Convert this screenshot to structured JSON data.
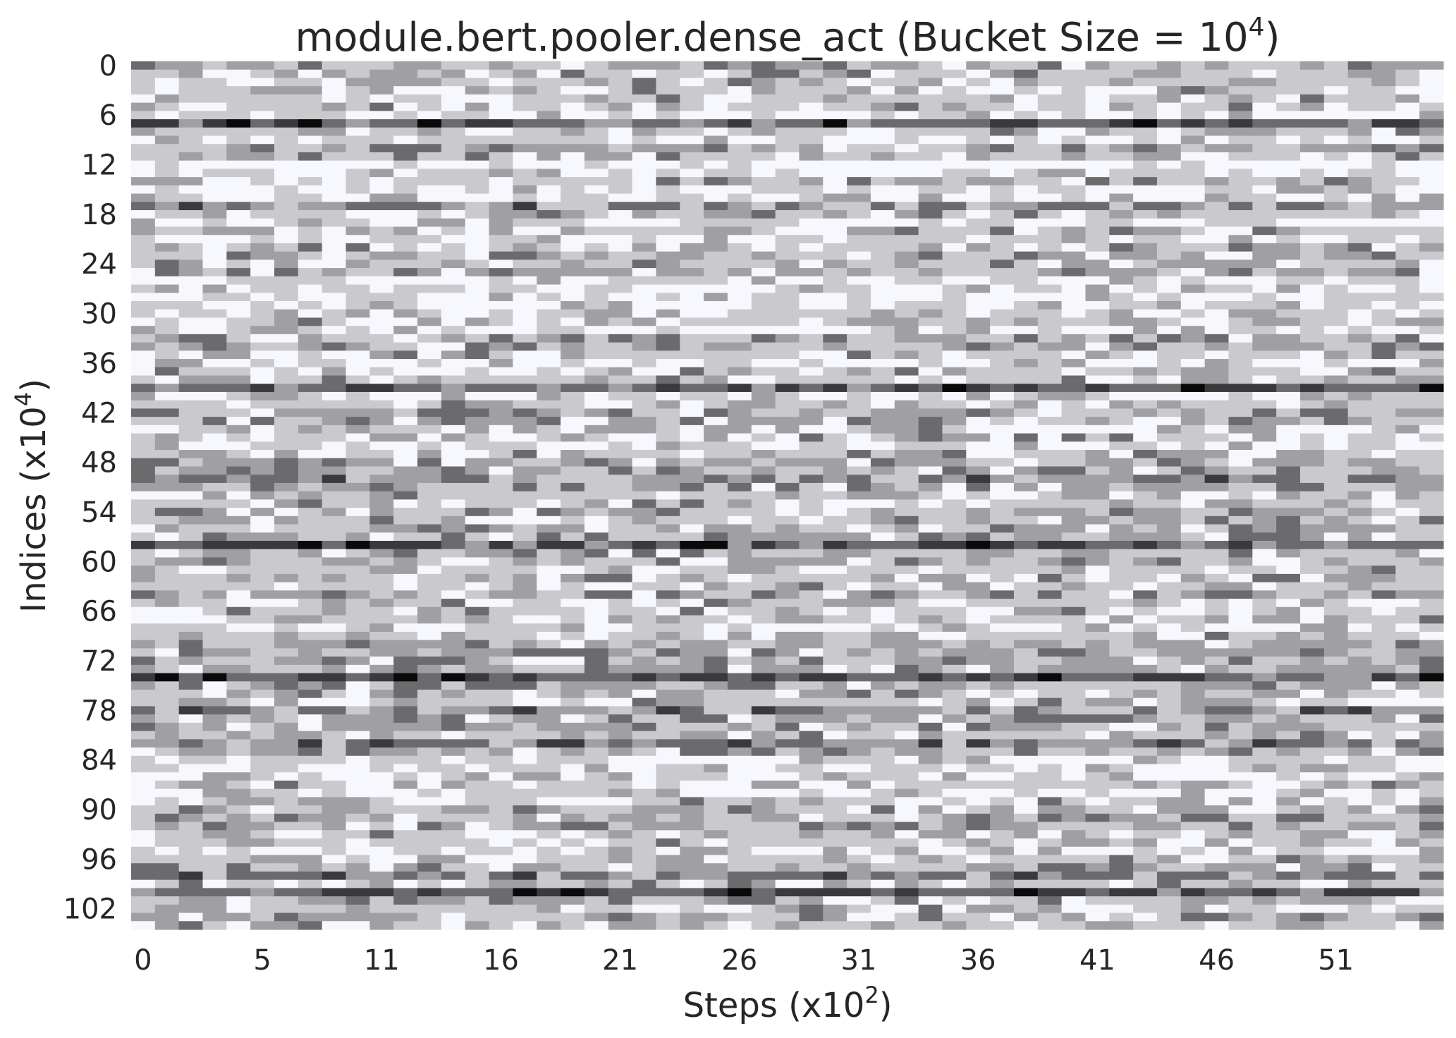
{
  "chart_data": {
    "type": "heatmap",
    "title": "module.bert.pooler.dense_act (Bucket Size = 10",
    "title_superscript": "4",
    "title_suffix": ")",
    "xlabel": "Steps (x10",
    "xlabel_superscript": "2",
    "xlabel_suffix": ")",
    "ylabel": "Indices (x10",
    "ylabel_superscript": "4",
    "ylabel_suffix": ")",
    "x_tick_labels": [
      "0",
      "5",
      "11",
      "16",
      "21",
      "26",
      "31",
      "36",
      "41",
      "46",
      "51"
    ],
    "x_tick_indices": [
      0,
      5,
      10,
      15,
      20,
      25,
      30,
      35,
      40,
      45,
      50
    ],
    "y_tick_labels": [
      "0",
      "6",
      "12",
      "18",
      "24",
      "30",
      "36",
      "42",
      "48",
      "54",
      "60",
      "66",
      "72",
      "78",
      "84",
      "90",
      "96",
      "102"
    ],
    "y_tick_indices": [
      0,
      6,
      12,
      18,
      24,
      30,
      36,
      42,
      48,
      54,
      60,
      66,
      72,
      78,
      84,
      90,
      96,
      102
    ],
    "n_columns": 55,
    "n_rows": 105,
    "colormap": [
      "#f7f8fe",
      "#c9c9ce",
      "#a0a0a4",
      "#6b6b6e",
      "#3a3a3c",
      "#0a0a0a"
    ],
    "row_profiles": [
      [
        0,
        3
      ],
      [
        1,
        2
      ],
      [
        2,
        2
      ],
      [
        3,
        2
      ],
      [
        4,
        2
      ],
      [
        5,
        2
      ],
      [
        6,
        1
      ],
      [
        7,
        5
      ],
      [
        8,
        2
      ],
      [
        9,
        1
      ],
      [
        10,
        3
      ],
      [
        11,
        2
      ],
      [
        12,
        0
      ],
      [
        13,
        1
      ],
      [
        14,
        2
      ],
      [
        15,
        1
      ],
      [
        16,
        1
      ],
      [
        17,
        4
      ],
      [
        18,
        2
      ],
      [
        19,
        1
      ],
      [
        20,
        2
      ],
      [
        21,
        1
      ],
      [
        22,
        2
      ],
      [
        23,
        3
      ],
      [
        24,
        2
      ],
      [
        25,
        3
      ],
      [
        26,
        1
      ],
      [
        27,
        1
      ],
      [
        28,
        1
      ],
      [
        29,
        1
      ],
      [
        30,
        2
      ],
      [
        31,
        2
      ],
      [
        32,
        1
      ],
      [
        33,
        3
      ],
      [
        34,
        3
      ],
      [
        35,
        2
      ],
      [
        36,
        1
      ],
      [
        37,
        2
      ],
      [
        38,
        2
      ],
      [
        39,
        5
      ],
      [
        40,
        1
      ],
      [
        41,
        2
      ],
      [
        42,
        3
      ],
      [
        43,
        3
      ],
      [
        44,
        2
      ],
      [
        45,
        2
      ],
      [
        46,
        1
      ],
      [
        47,
        2
      ],
      [
        48,
        3
      ],
      [
        49,
        3
      ],
      [
        50,
        4
      ],
      [
        51,
        3
      ],
      [
        52,
        2
      ],
      [
        53,
        2
      ],
      [
        54,
        3
      ],
      [
        55,
        3
      ],
      [
        56,
        3
      ],
      [
        57,
        3
      ],
      [
        58,
        5
      ],
      [
        59,
        3
      ],
      [
        60,
        3
      ],
      [
        61,
        2
      ],
      [
        62,
        2
      ],
      [
        63,
        2
      ],
      [
        64,
        3
      ],
      [
        65,
        2
      ],
      [
        66,
        2
      ],
      [
        67,
        2
      ],
      [
        68,
        1
      ],
      [
        69,
        2
      ],
      [
        70,
        3
      ],
      [
        71,
        3
      ],
      [
        72,
        3
      ],
      [
        73,
        3
      ],
      [
        74,
        5
      ],
      [
        75,
        3
      ],
      [
        76,
        2
      ],
      [
        77,
        2
      ],
      [
        78,
        4
      ],
      [
        79,
        3
      ],
      [
        80,
        3
      ],
      [
        81,
        2
      ],
      [
        82,
        4
      ],
      [
        83,
        3
      ],
      [
        84,
        1
      ],
      [
        85,
        1
      ],
      [
        86,
        1
      ],
      [
        87,
        2
      ],
      [
        88,
        1
      ],
      [
        89,
        2
      ],
      [
        90,
        3
      ],
      [
        91,
        3
      ],
      [
        92,
        3
      ],
      [
        93,
        2
      ],
      [
        94,
        2
      ],
      [
        95,
        1
      ],
      [
        96,
        2
      ],
      [
        97,
        3
      ],
      [
        98,
        4
      ],
      [
        99,
        2
      ],
      [
        100,
        5
      ],
      [
        101,
        3
      ],
      [
        102,
        2
      ],
      [
        103,
        3
      ],
      [
        104,
        2
      ]
    ]
  }
}
